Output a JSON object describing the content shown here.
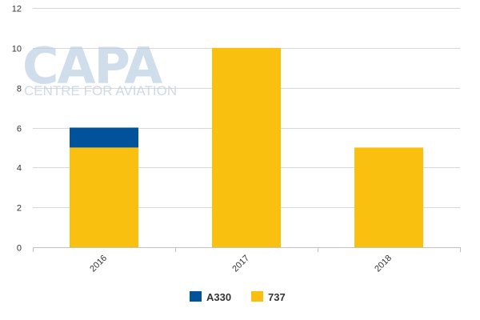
{
  "watermark": {
    "brand": "CAPA",
    "tagline": "CENTRE FOR AVIATION"
  },
  "chart_data": {
    "type": "bar",
    "stacked": true,
    "categories": [
      "2016",
      "2017",
      "2018"
    ],
    "series": [
      {
        "name": "737",
        "color": "#f9c00f",
        "values": [
          5,
          10,
          5
        ]
      },
      {
        "name": "A330",
        "color": "#00529b",
        "values": [
          1,
          0,
          0
        ]
      }
    ],
    "legend_order": [
      "A330",
      "737"
    ],
    "ylim": [
      0,
      12
    ],
    "yticks": [
      0,
      2,
      4,
      6,
      8,
      10,
      12
    ],
    "grid": true,
    "legend_position": "bottom",
    "title": "",
    "xlabel": "",
    "ylabel": ""
  }
}
